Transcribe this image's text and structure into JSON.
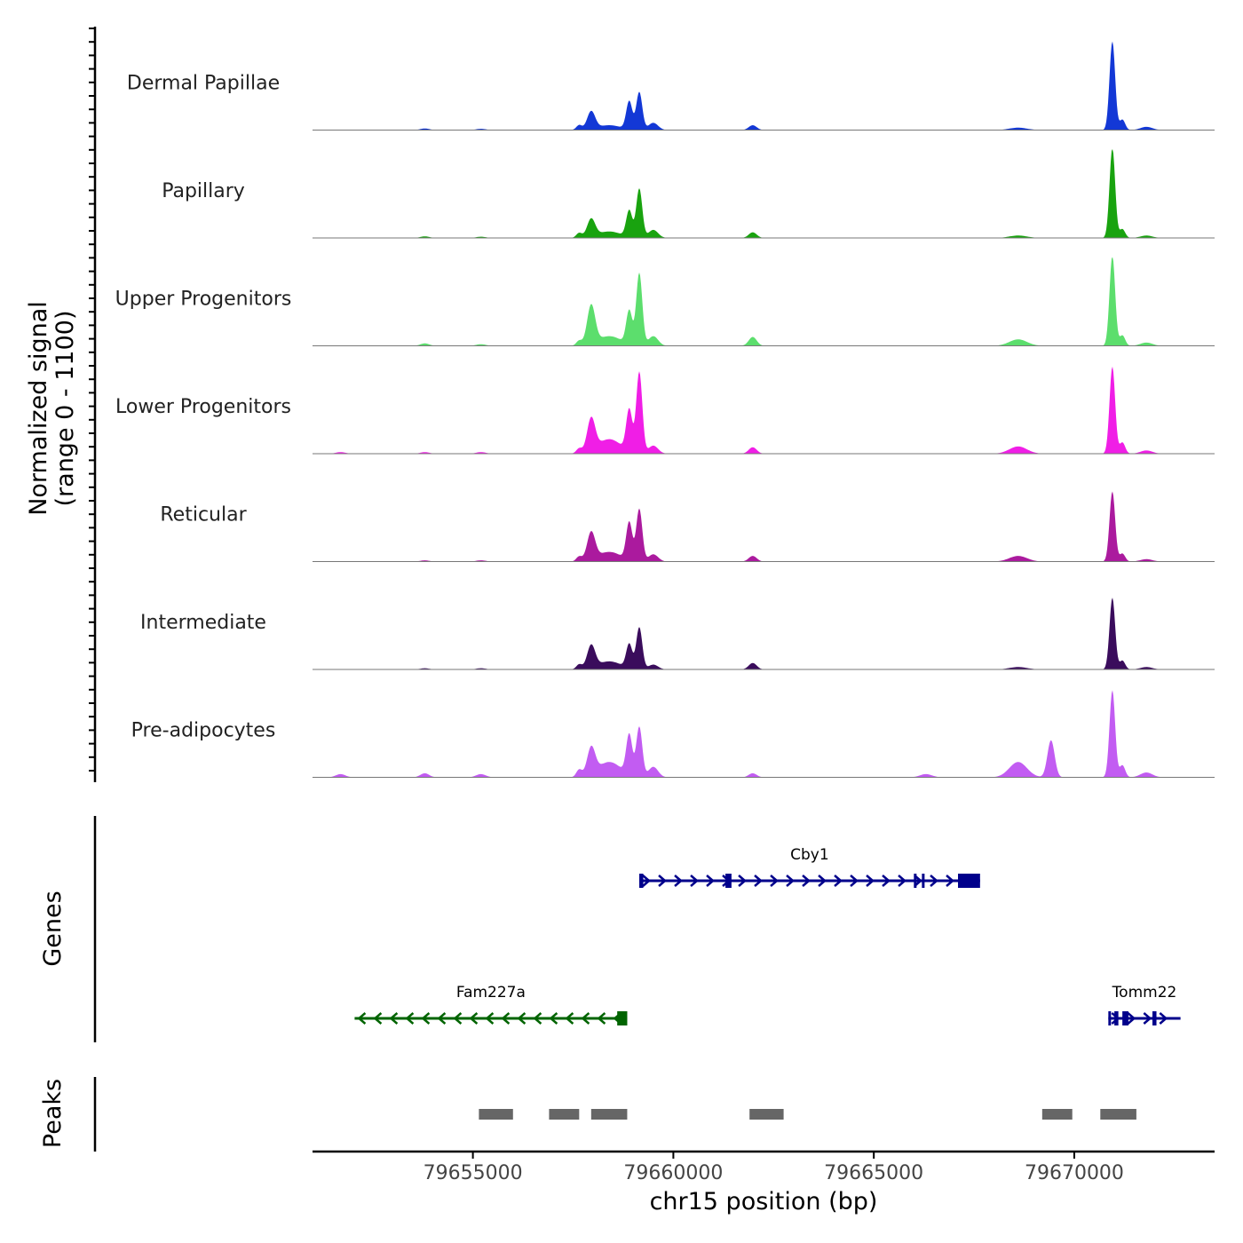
{
  "chart_data": {
    "type": "area",
    "title": "",
    "xlabel": "chr15 position (bp)",
    "ylabel_line1": "Normalized signal",
    "ylabel_line2": "(range 0 - 1100)",
    "y_range": [
      0,
      1100
    ],
    "xlim": [
      79651000,
      79673500
    ],
    "x_ticks": [
      79655000,
      79660000,
      79665000,
      79670000
    ],
    "x_tick_labels": [
      "79655000",
      "79660000",
      "79665000",
      "79670000"
    ],
    "peak_shapes": [
      {
        "center": 79651700,
        "width": 120
      },
      {
        "center": 79653800,
        "width": 110
      },
      {
        "center": 79655200,
        "width": 120
      },
      {
        "center": 79657650,
        "width": 70
      },
      {
        "center": 79657950,
        "width": 100
      },
      {
        "center": 79658400,
        "width": 300
      },
      {
        "center": 79658900,
        "width": 75
      },
      {
        "center": 79659150,
        "width": 75
      },
      {
        "center": 79659500,
        "width": 120
      },
      {
        "center": 79661980,
        "width": 100
      },
      {
        "center": 79666300,
        "width": 150
      },
      {
        "center": 79668600,
        "width": 220
      },
      {
        "center": 79669420,
        "width": 90
      },
      {
        "center": 79670950,
        "width": 70
      },
      {
        "center": 79671200,
        "width": 70
      },
      {
        "center": 79671800,
        "width": 150
      }
    ],
    "series": [
      {
        "name": "Dermal Papillae",
        "color": "#1338d6",
        "heights": [
          0,
          20,
          15,
          60,
          220,
          60,
          350,
          470,
          90,
          60,
          0,
          30,
          0,
          1100,
          130,
          40
        ]
      },
      {
        "name": "Papillary",
        "color": "#19a30f",
        "heights": [
          0,
          20,
          15,
          60,
          220,
          80,
          330,
          610,
          100,
          70,
          0,
          30,
          0,
          1120,
          110,
          30
        ]
      },
      {
        "name": "Upper Progenitors",
        "color": "#5cde6d",
        "heights": [
          0,
          30,
          20,
          60,
          480,
          120,
          420,
          900,
          120,
          110,
          0,
          80,
          0,
          1120,
          130,
          40
        ]
      },
      {
        "name": "Lower Progenitors",
        "color": "#f01ee6",
        "heights": [
          20,
          20,
          20,
          60,
          400,
          180,
          520,
          1010,
          100,
          80,
          0,
          90,
          0,
          1080,
          140,
          40
        ]
      },
      {
        "name": "Reticular",
        "color": "#ab1a9e",
        "heights": [
          0,
          15,
          15,
          60,
          340,
          120,
          470,
          650,
          90,
          70,
          0,
          70,
          0,
          870,
          100,
          30
        ]
      },
      {
        "name": "Intermediate",
        "color": "#3a0c5c",
        "heights": [
          0,
          15,
          15,
          60,
          280,
          100,
          300,
          520,
          60,
          80,
          0,
          30,
          0,
          890,
          110,
          30
        ]
      },
      {
        "name": "Pre-adipocytes",
        "color": "#c25cf2",
        "heights": [
          40,
          50,
          40,
          90,
          330,
          190,
          500,
          620,
          130,
          50,
          40,
          190,
          460,
          1080,
          150,
          60
        ]
      }
    ],
    "genes": [
      {
        "name": "Cby1",
        "strand": "+",
        "start": 79659150,
        "end": 79667650,
        "color": "#00008b",
        "exons": [
          [
            79659150,
            79659250
          ],
          [
            79661300,
            79661450
          ],
          [
            79666000,
            79666060
          ],
          [
            79666200,
            79666260
          ],
          [
            79667100,
            79667650
          ]
        ]
      },
      {
        "name": "Fam227a",
        "strand": "-",
        "start": 79652050,
        "end": 79658850,
        "color": "#006400",
        "exons": [
          [
            79658600,
            79658850
          ]
        ]
      },
      {
        "name": "Tomm22",
        "strand": "+",
        "start": 79670850,
        "end": 79672650,
        "color": "#00008b",
        "exons": [
          [
            79670850,
            79670900
          ],
          [
            79671000,
            79671100
          ],
          [
            79671200,
            79671350
          ],
          [
            79671950,
            79672050
          ]
        ]
      }
    ],
    "peaks": [
      [
        79655150,
        79656000
      ],
      [
        79656900,
        79657650
      ],
      [
        79657950,
        79658850
      ],
      [
        79661900,
        79662750
      ],
      [
        79669200,
        79669950
      ],
      [
        79670650,
        79671550
      ]
    ],
    "panel_labels": {
      "genes": "Genes",
      "peaks": "Peaks"
    }
  }
}
